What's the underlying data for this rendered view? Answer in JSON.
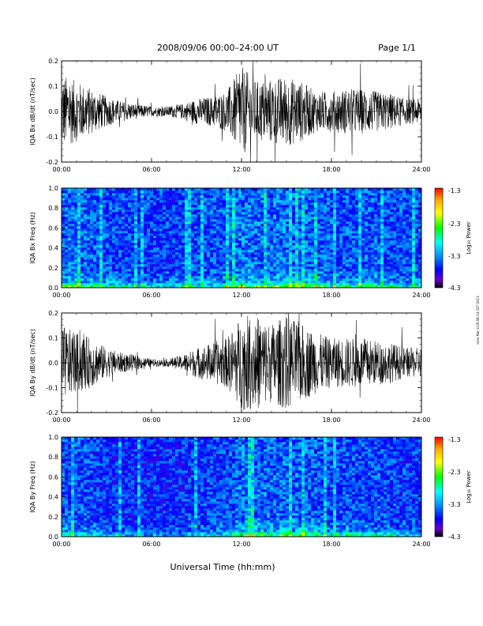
{
  "header": {
    "title": "2008/09/06  00:00–24:00 UT",
    "page": "Page 1/1"
  },
  "footer": {
    "xlabel": "Universal Time (hh:mm)",
    "side_stamp": "mon Mar 4 05:08:14 CET 2013"
  },
  "colorbar": {
    "label": "Log₁₀ Power",
    "ticks": [
      "-1.3",
      "-2.3",
      "-3.3",
      "-4.3"
    ],
    "colors": [
      "#ff0000",
      "#ffaa00",
      "#ffff00",
      "#00ff00",
      "#00ffff",
      "#0080ff",
      "#0000ff",
      "#6600cc",
      "#000000"
    ]
  },
  "colors": {
    "axis": "#000000",
    "trace": "#000000",
    "spectrogram_background": "#1e2cc8"
  },
  "chart_data": [
    {
      "type": "line",
      "ylabel": "IQA Bx dB/dt (nT/sec)",
      "xlim": [
        0,
        24
      ],
      "ylim": [
        -0.2,
        0.2
      ],
      "xticks": [
        "00:00",
        "06:00",
        "12:00",
        "18:00",
        "24:00"
      ],
      "yticks": [
        "0.2",
        "0.1",
        "0.0",
        "-0.1",
        "-0.2"
      ],
      "x": [
        0,
        1,
        2,
        3,
        4,
        5,
        6,
        7,
        8,
        9,
        10,
        11,
        12,
        13,
        14,
        15,
        16,
        17,
        18,
        19,
        20,
        21,
        22,
        23,
        24
      ],
      "envelope": [
        0.15,
        0.12,
        0.09,
        0.06,
        0.04,
        0.03,
        0.02,
        0.02,
        0.03,
        0.05,
        0.06,
        0.08,
        0.18,
        0.12,
        0.13,
        0.14,
        0.12,
        0.08,
        0.08,
        0.09,
        0.09,
        0.08,
        0.07,
        0.05,
        0.05
      ]
    },
    {
      "type": "heatmap",
      "ylabel": "IQA Bx Freq (Hz)",
      "xlim": [
        0,
        24
      ],
      "ylim": [
        0,
        1
      ],
      "xticks": [
        "00:00",
        "06:00",
        "12:00",
        "18:00",
        "24:00"
      ],
      "yticks": [
        "1.0",
        "0.8",
        "0.6",
        "0.4",
        "0.2",
        "0.0"
      ],
      "zlim": [
        -4.3,
        -1.3
      ],
      "activity": [
        0.75,
        0.7,
        0.65,
        0.55,
        0.5,
        0.5,
        0.45,
        0.45,
        0.5,
        0.55,
        0.55,
        0.6,
        0.8,
        0.7,
        0.7,
        0.75,
        0.72,
        0.65,
        0.62,
        0.6,
        0.62,
        0.6,
        0.55,
        0.5,
        0.5
      ]
    },
    {
      "type": "line",
      "ylabel": "IQA By dB/dt (nT/sec)",
      "xlim": [
        0,
        24
      ],
      "ylim": [
        -0.2,
        0.2
      ],
      "xticks": [
        "00:00",
        "06:00",
        "12:00",
        "18:00",
        "24:00"
      ],
      "yticks": [
        "0.2",
        "0.1",
        "0.0",
        "-0.1",
        "-0.2"
      ],
      "x": [
        0,
        1,
        2,
        3,
        4,
        5,
        6,
        7,
        8,
        9,
        10,
        11,
        12,
        13,
        14,
        15,
        16,
        17,
        18,
        19,
        20,
        21,
        22,
        23,
        24
      ],
      "envelope": [
        0.15,
        0.12,
        0.1,
        0.06,
        0.04,
        0.03,
        0.015,
        0.015,
        0.03,
        0.06,
        0.08,
        0.1,
        0.19,
        0.19,
        0.16,
        0.19,
        0.16,
        0.12,
        0.1,
        0.1,
        0.1,
        0.09,
        0.08,
        0.06,
        0.06
      ]
    },
    {
      "type": "heatmap",
      "ylabel": "IQA By Freq (Hz)",
      "xlim": [
        0,
        24
      ],
      "ylim": [
        0,
        1
      ],
      "xticks": [
        "00:00",
        "06:00",
        "12:00",
        "18:00",
        "24:00"
      ],
      "yticks": [
        "1.0",
        "0.8",
        "0.6",
        "0.4",
        "0.2",
        "0.0"
      ],
      "zlim": [
        -4.3,
        -1.3
      ],
      "activity": [
        0.6,
        0.55,
        0.5,
        0.4,
        0.35,
        0.35,
        0.3,
        0.3,
        0.35,
        0.4,
        0.45,
        0.5,
        0.75,
        0.7,
        0.65,
        0.7,
        0.68,
        0.6,
        0.55,
        0.55,
        0.55,
        0.52,
        0.48,
        0.42,
        0.42
      ]
    }
  ]
}
